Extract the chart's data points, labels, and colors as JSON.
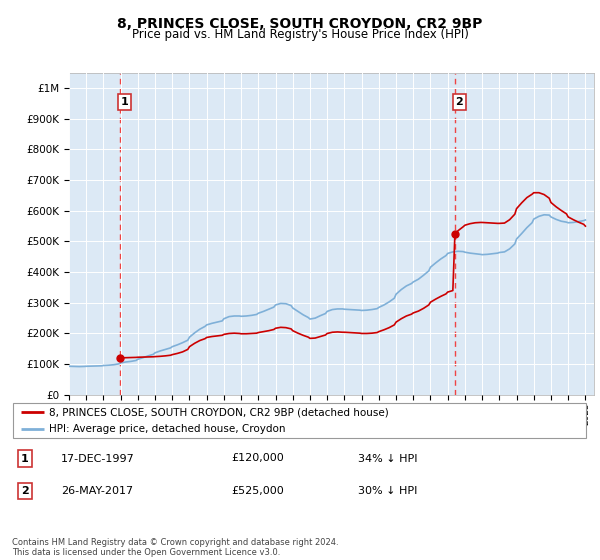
{
  "title": "8, PRINCES CLOSE, SOUTH CROYDON, CR2 9BP",
  "subtitle": "Price paid vs. HM Land Registry's House Price Index (HPI)",
  "bg_color": "#dce9f5",
  "grid_color": "#ffffff",
  "ylim": [
    0,
    1050000
  ],
  "yticks": [
    0,
    100000,
    200000,
    300000,
    400000,
    500000,
    600000,
    700000,
    800000,
    900000,
    1000000
  ],
  "ytick_labels": [
    "£0",
    "£100K",
    "£200K",
    "£300K",
    "£400K",
    "£500K",
    "£600K",
    "£700K",
    "£800K",
    "£900K",
    "£1M"
  ],
  "sale1_price": 120000,
  "sale1_label": "17-DEC-1997",
  "sale1_note": "34% ↓ HPI",
  "sale2_price": 525000,
  "sale2_label": "26-MAY-2017",
  "sale2_note": "30% ↓ HPI",
  "legend_property": "8, PRINCES CLOSE, SOUTH CROYDON, CR2 9BP (detached house)",
  "legend_hpi": "HPI: Average price, detached house, Croydon",
  "property_line_color": "#cc0000",
  "hpi_line_color": "#7fb0d8",
  "dashed_line_color": "#ee4444",
  "sale_marker_color": "#cc0000",
  "footnote": "Contains HM Land Registry data © Crown copyright and database right 2024.\nThis data is licensed under the Open Government Licence v3.0.",
  "xstart": 1995.0,
  "xend": 2025.5,
  "sale1_x": 1997.96,
  "sale2_x": 2017.42,
  "hpi_data": [
    [
      1995.0,
      93000
    ],
    [
      1995.3,
      92500
    ],
    [
      1995.6,
      92000
    ],
    [
      1995.9,
      92500
    ],
    [
      1996.0,
      93000
    ],
    [
      1996.3,
      93500
    ],
    [
      1996.6,
      94000
    ],
    [
      1996.9,
      94500
    ],
    [
      1997.0,
      95500
    ],
    [
      1997.3,
      96500
    ],
    [
      1997.6,
      98000
    ],
    [
      1997.9,
      101000
    ],
    [
      1998.0,
      104000
    ],
    [
      1998.3,
      107000
    ],
    [
      1998.6,
      109000
    ],
    [
      1998.9,
      112000
    ],
    [
      1999.0,
      116000
    ],
    [
      1999.3,
      121000
    ],
    [
      1999.6,
      127000
    ],
    [
      1999.9,
      132000
    ],
    [
      2000.0,
      137000
    ],
    [
      2000.3,
      143000
    ],
    [
      2000.6,
      148000
    ],
    [
      2000.9,
      153000
    ],
    [
      2001.0,
      157000
    ],
    [
      2001.3,
      163000
    ],
    [
      2001.6,
      170000
    ],
    [
      2001.9,
      178000
    ],
    [
      2002.0,
      188000
    ],
    [
      2002.3,
      202000
    ],
    [
      2002.6,
      214000
    ],
    [
      2002.9,
      223000
    ],
    [
      2003.0,
      228000
    ],
    [
      2003.3,
      233000
    ],
    [
      2003.6,
      237000
    ],
    [
      2003.9,
      241000
    ],
    [
      2004.0,
      248000
    ],
    [
      2004.3,
      255000
    ],
    [
      2004.6,
      257000
    ],
    [
      2004.9,
      257000
    ],
    [
      2005.0,
      256000
    ],
    [
      2005.3,
      257000
    ],
    [
      2005.6,
      259000
    ],
    [
      2005.9,
      262000
    ],
    [
      2006.0,
      266000
    ],
    [
      2006.3,
      272000
    ],
    [
      2006.6,
      279000
    ],
    [
      2006.9,
      286000
    ],
    [
      2007.0,
      293000
    ],
    [
      2007.3,
      298000
    ],
    [
      2007.6,
      297000
    ],
    [
      2007.9,
      291000
    ],
    [
      2008.0,
      283000
    ],
    [
      2008.3,
      272000
    ],
    [
      2008.6,
      261000
    ],
    [
      2008.9,
      252000
    ],
    [
      2009.0,
      247000
    ],
    [
      2009.3,
      250000
    ],
    [
      2009.6,
      258000
    ],
    [
      2009.9,
      265000
    ],
    [
      2010.0,
      272000
    ],
    [
      2010.3,
      278000
    ],
    [
      2010.6,
      280000
    ],
    [
      2010.9,
      280000
    ],
    [
      2011.0,
      279000
    ],
    [
      2011.3,
      278000
    ],
    [
      2011.6,
      277000
    ],
    [
      2011.9,
      276000
    ],
    [
      2012.0,
      275000
    ],
    [
      2012.3,
      276000
    ],
    [
      2012.6,
      278000
    ],
    [
      2012.9,
      281000
    ],
    [
      2013.0,
      285000
    ],
    [
      2013.3,
      293000
    ],
    [
      2013.6,
      303000
    ],
    [
      2013.9,
      315000
    ],
    [
      2014.0,
      328000
    ],
    [
      2014.3,
      343000
    ],
    [
      2014.6,
      355000
    ],
    [
      2014.9,
      363000
    ],
    [
      2015.0,
      368000
    ],
    [
      2015.3,
      377000
    ],
    [
      2015.6,
      390000
    ],
    [
      2015.9,
      404000
    ],
    [
      2016.0,
      416000
    ],
    [
      2016.3,
      430000
    ],
    [
      2016.6,
      443000
    ],
    [
      2016.9,
      454000
    ],
    [
      2017.0,
      461000
    ],
    [
      2017.3,
      466000
    ],
    [
      2017.6,
      468000
    ],
    [
      2017.9,
      467000
    ],
    [
      2018.0,
      465000
    ],
    [
      2018.3,
      462000
    ],
    [
      2018.6,
      460000
    ],
    [
      2018.9,
      458000
    ],
    [
      2019.0,
      457000
    ],
    [
      2019.3,
      458000
    ],
    [
      2019.6,
      460000
    ],
    [
      2019.9,
      462000
    ],
    [
      2020.0,
      464000
    ],
    [
      2020.3,
      466000
    ],
    [
      2020.6,
      476000
    ],
    [
      2020.9,
      492000
    ],
    [
      2021.0,
      508000
    ],
    [
      2021.3,
      526000
    ],
    [
      2021.6,
      545000
    ],
    [
      2021.9,
      561000
    ],
    [
      2022.0,
      573000
    ],
    [
      2022.3,
      582000
    ],
    [
      2022.6,
      587000
    ],
    [
      2022.9,
      586000
    ],
    [
      2023.0,
      580000
    ],
    [
      2023.3,
      572000
    ],
    [
      2023.6,
      566000
    ],
    [
      2023.9,
      563000
    ],
    [
      2024.0,
      561000
    ],
    [
      2024.3,
      562000
    ],
    [
      2024.6,
      565000
    ],
    [
      2024.9,
      568000
    ],
    [
      2025.0,
      570000
    ]
  ],
  "property_data": [
    [
      1997.96,
      120000
    ],
    [
      1998.0,
      120500
    ],
    [
      1998.3,
      121000
    ],
    [
      1998.6,
      121500
    ],
    [
      1998.9,
      122000
    ],
    [
      1999.0,
      122500
    ],
    [
      1999.3,
      123000
    ],
    [
      1999.6,
      123500
    ],
    [
      1999.9,
      124000
    ],
    [
      2000.0,
      124500
    ],
    [
      2000.3,
      125500
    ],
    [
      2000.6,
      127000
    ],
    [
      2000.9,
      129000
    ],
    [
      2001.0,
      131000
    ],
    [
      2001.3,
      135000
    ],
    [
      2001.6,
      140000
    ],
    [
      2001.9,
      148000
    ],
    [
      2002.0,
      157000
    ],
    [
      2002.3,
      168000
    ],
    [
      2002.6,
      177000
    ],
    [
      2002.9,
      183000
    ],
    [
      2003.0,
      187000
    ],
    [
      2003.3,
      190000
    ],
    [
      2003.6,
      192000
    ],
    [
      2003.9,
      194000
    ],
    [
      2004.0,
      197000
    ],
    [
      2004.3,
      200000
    ],
    [
      2004.6,
      201000
    ],
    [
      2004.9,
      200000
    ],
    [
      2005.0,
      199000
    ],
    [
      2005.3,
      199000
    ],
    [
      2005.6,
      200000
    ],
    [
      2005.9,
      201000
    ],
    [
      2006.0,
      203000
    ],
    [
      2006.3,
      206000
    ],
    [
      2006.6,
      209000
    ],
    [
      2006.9,
      213000
    ],
    [
      2007.0,
      217000
    ],
    [
      2007.3,
      220000
    ],
    [
      2007.6,
      219000
    ],
    [
      2007.9,
      215000
    ],
    [
      2008.0,
      209000
    ],
    [
      2008.3,
      201000
    ],
    [
      2008.6,
      194000
    ],
    [
      2008.9,
      188000
    ],
    [
      2009.0,
      184000
    ],
    [
      2009.3,
      185000
    ],
    [
      2009.6,
      190000
    ],
    [
      2009.9,
      195000
    ],
    [
      2010.0,
      200000
    ],
    [
      2010.3,
      204000
    ],
    [
      2010.6,
      205000
    ],
    [
      2010.9,
      204000
    ],
    [
      2011.0,
      204000
    ],
    [
      2011.3,
      203000
    ],
    [
      2011.6,
      202000
    ],
    [
      2011.9,
      201000
    ],
    [
      2012.0,
      200000
    ],
    [
      2012.3,
      200000
    ],
    [
      2012.6,
      201000
    ],
    [
      2012.9,
      203000
    ],
    [
      2013.0,
      206000
    ],
    [
      2013.3,
      212000
    ],
    [
      2013.6,
      219000
    ],
    [
      2013.9,
      228000
    ],
    [
      2014.0,
      237000
    ],
    [
      2014.3,
      248000
    ],
    [
      2014.6,
      257000
    ],
    [
      2014.9,
      263000
    ],
    [
      2015.0,
      267000
    ],
    [
      2015.3,
      273000
    ],
    [
      2015.6,
      282000
    ],
    [
      2015.9,
      293000
    ],
    [
      2016.0,
      302000
    ],
    [
      2016.3,
      312000
    ],
    [
      2016.6,
      321000
    ],
    [
      2016.9,
      329000
    ],
    [
      2017.0,
      335000
    ],
    [
      2017.3,
      340000
    ],
    [
      2017.42,
      525000
    ],
    [
      2017.5,
      527000
    ],
    [
      2017.6,
      535000
    ],
    [
      2017.9,
      548000
    ],
    [
      2018.0,
      553000
    ],
    [
      2018.3,
      558000
    ],
    [
      2018.6,
      561000
    ],
    [
      2018.9,
      562000
    ],
    [
      2019.0,
      562000
    ],
    [
      2019.3,
      561000
    ],
    [
      2019.6,
      560000
    ],
    [
      2019.9,
      559000
    ],
    [
      2020.0,
      559000
    ],
    [
      2020.3,
      560000
    ],
    [
      2020.6,
      571000
    ],
    [
      2020.9,
      589000
    ],
    [
      2021.0,
      607000
    ],
    [
      2021.3,
      626000
    ],
    [
      2021.6,
      643000
    ],
    [
      2021.9,
      654000
    ],
    [
      2022.0,
      659000
    ],
    [
      2022.3,
      659000
    ],
    [
      2022.6,
      653000
    ],
    [
      2022.9,
      641000
    ],
    [
      2023.0,
      627000
    ],
    [
      2023.3,
      613000
    ],
    [
      2023.6,
      601000
    ],
    [
      2023.9,
      590000
    ],
    [
      2024.0,
      580000
    ],
    [
      2024.3,
      571000
    ],
    [
      2024.6,
      563000
    ],
    [
      2024.9,
      556000
    ],
    [
      2025.0,
      550000
    ]
  ]
}
